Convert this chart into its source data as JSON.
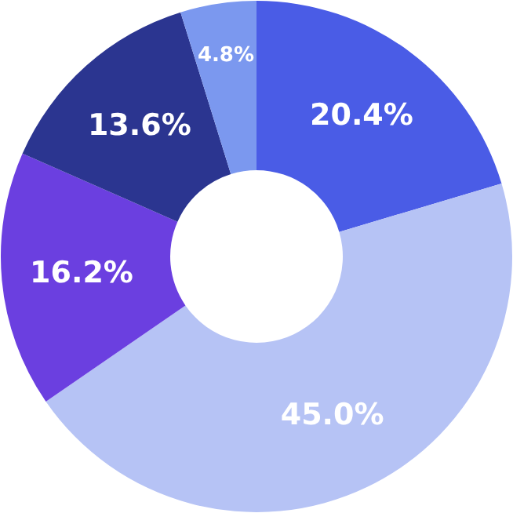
{
  "chart_data": {
    "type": "donut",
    "categories": [
      null,
      null,
      null,
      null,
      null
    ],
    "values": [
      20.4,
      45.0,
      16.2,
      13.6,
      4.8
    ],
    "value_labels": [
      "20.4%",
      "45.0%",
      "16.2%",
      "13.6%",
      "4.8%"
    ],
    "colors": [
      "#4a5ce6",
      "#b6c3f5",
      "#6b3fe0",
      "#2b3590",
      "#7b98ef"
    ]
  }
}
